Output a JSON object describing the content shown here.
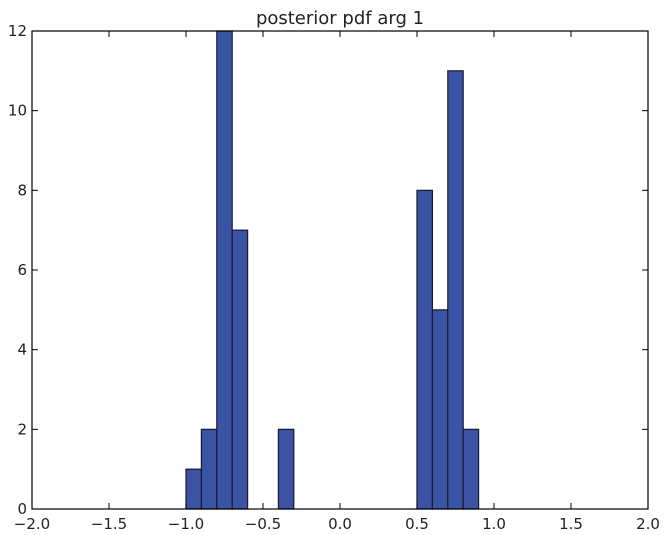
{
  "chart_data": {
    "type": "bar",
    "title": "posterior pdf arg 1",
    "xlabel": "",
    "ylabel": "",
    "xlim": [
      -2.0,
      2.0
    ],
    "ylim": [
      0,
      12
    ],
    "grid": false,
    "x_ticks": [
      "−2.0",
      "−1.5",
      "−1.0",
      "−0.5",
      "0.0",
      "0.5",
      "1.0",
      "1.5",
      "2.0"
    ],
    "x_tick_values": [
      -2.0,
      -1.5,
      -1.0,
      -0.5,
      0.0,
      0.5,
      1.0,
      1.5,
      2.0
    ],
    "y_ticks": [
      "0",
      "2",
      "4",
      "6",
      "8",
      "10",
      "12"
    ],
    "y_tick_values": [
      0,
      2,
      4,
      6,
      8,
      10,
      12
    ],
    "bins": [
      {
        "x0": -1.0,
        "x1": -0.9,
        "count": 1
      },
      {
        "x0": -0.9,
        "x1": -0.8,
        "count": 2
      },
      {
        "x0": -0.8,
        "x1": -0.7,
        "count": 12
      },
      {
        "x0": -0.7,
        "x1": -0.6,
        "count": 7
      },
      {
        "x0": -0.4,
        "x1": -0.3,
        "count": 2
      },
      {
        "x0": 0.5,
        "x1": 0.6,
        "count": 8
      },
      {
        "x0": 0.6,
        "x1": 0.7,
        "count": 5
      },
      {
        "x0": 0.7,
        "x1": 0.8,
        "count": 11
      },
      {
        "x0": 0.8,
        "x1": 0.9,
        "count": 2
      }
    ],
    "bar_color": "#3b53a4",
    "edge_color": "#1a1a2e"
  }
}
